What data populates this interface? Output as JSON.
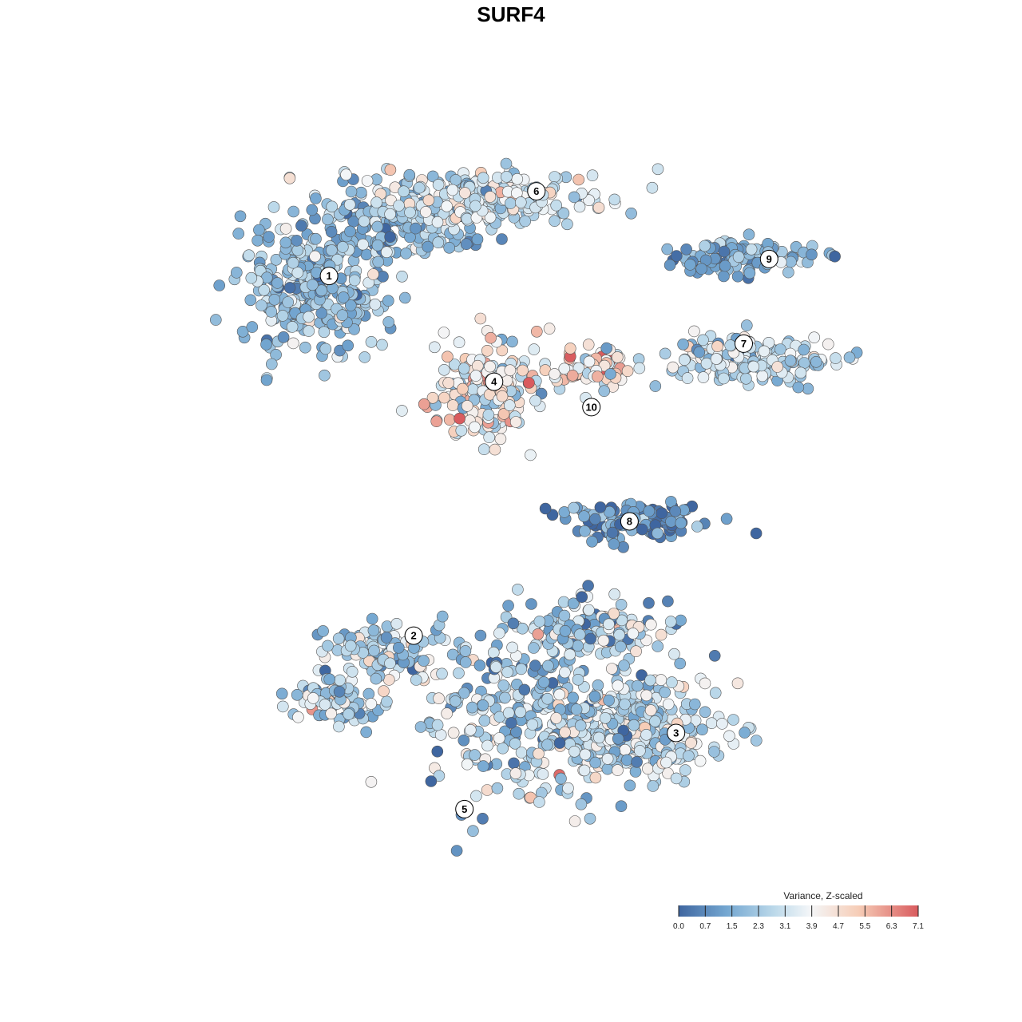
{
  "chart_data": {
    "type": "scatter",
    "title": "SURF4",
    "xlabel": "",
    "ylabel": "",
    "xlim": [
      -50,
      50
    ],
    "ylim": [
      -50,
      50
    ],
    "grid": false,
    "point_colormap": [
      "#3f66a0",
      "#74a7d1",
      "#bcd9ea",
      "#f4f6f8",
      "#f6cdb7",
      "#d95b5e"
    ],
    "clusters": [
      {
        "label": "1",
        "x": -21.5,
        "y": 24.0,
        "dominant_value": 2.0
      },
      {
        "label": "2",
        "x": -11.5,
        "y": -18.5,
        "dominant_value": 2.6
      },
      {
        "label": "3",
        "x": 19.5,
        "y": -30.0,
        "dominant_value": 3.0
      },
      {
        "label": "4",
        "x": -2.0,
        "y": 11.5,
        "dominant_value": 3.8
      },
      {
        "label": "5",
        "x": -5.5,
        "y": -39.0,
        "dominant_value": 2.6
      },
      {
        "label": "6",
        "x": 3.0,
        "y": 34.0,
        "dominant_value": 3.3
      },
      {
        "label": "7",
        "x": 27.5,
        "y": 16.0,
        "dominant_value": 2.9
      },
      {
        "label": "8",
        "x": 14.0,
        "y": -5.0,
        "dominant_value": 0.8
      },
      {
        "label": "9",
        "x": 30.5,
        "y": 26.0,
        "dominant_value": 1.6
      },
      {
        "label": "10",
        "x": 9.5,
        "y": 8.5,
        "dominant_value": 4.8
      }
    ],
    "legend": {
      "title": "Variance, Z-scaled",
      "placement": "bottom-right",
      "ticks": [
        "0.0",
        "0.7",
        "1.5",
        "2.3",
        "3.1",
        "3.9",
        "4.7",
        "5.5",
        "6.3",
        "7.1"
      ],
      "range": [
        0.0,
        7.1
      ]
    }
  }
}
